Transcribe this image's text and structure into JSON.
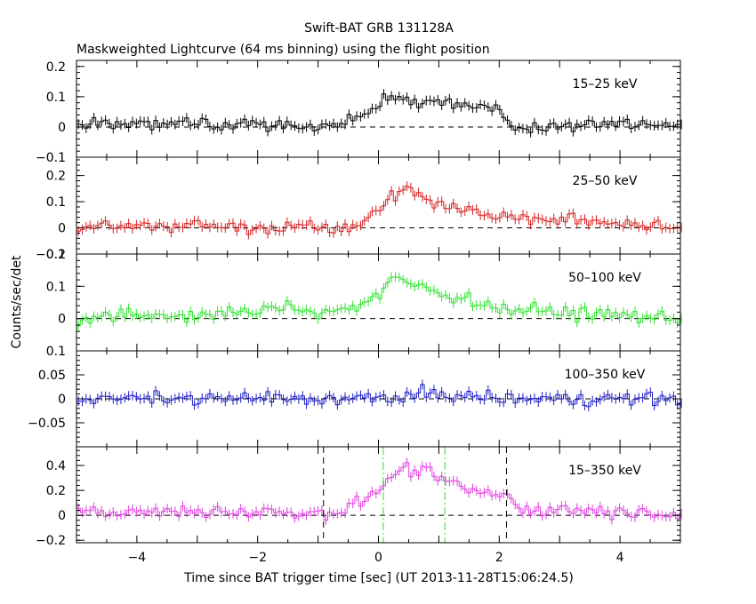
{
  "title": "Swift-BAT GRB 131128A",
  "subtitle": "Maskweighted Lightcurve (64 ms binning) using the flight position",
  "ylabel": "Counts/sec/det",
  "xlabel": "Time since BAT trigger time [sec] (UT 2013-11-28T15:06:24.5)",
  "colors": {
    "black": "#000000",
    "red": "#d62020",
    "green": "#2ee02e",
    "blue": "#1c1cc8",
    "magenta": "#e040e0"
  },
  "chart_data": [
    {
      "type": "line",
      "name": "15-25 keV",
      "label": "15–25 keV",
      "color": "#000000",
      "xlim": [
        -5,
        5
      ],
      "ylim": [
        -0.1,
        0.22
      ],
      "yticks": [
        -0.1,
        0,
        0.1,
        0.2
      ],
      "ytick_labels": [
        "−0.1",
        "0",
        "0.1",
        "0.2"
      ],
      "bin": 0.064,
      "x": [
        -5.0,
        -4.0,
        -3.0,
        -2.0,
        -1.0,
        -0.5,
        0.0,
        0.2,
        0.5,
        1.0,
        1.5,
        2.0,
        2.3,
        3.0,
        4.0,
        5.0
      ],
      "y": [
        0.01,
        0.01,
        0.01,
        0.01,
        0.0,
        0.02,
        0.07,
        0.1,
        0.08,
        0.09,
        0.07,
        0.06,
        -0.01,
        0.01,
        0.01,
        0.01
      ]
    },
    {
      "type": "line",
      "name": "25-50 keV",
      "label": "25–50 keV",
      "color": "#d62020",
      "xlim": [
        -5,
        5
      ],
      "ylim": [
        -0.1,
        0.27
      ],
      "yticks": [
        -0.1,
        0,
        0.1,
        0.2
      ],
      "ytick_labels": [
        "−0.1",
        "0",
        "0.1",
        "0.2"
      ],
      "bin": 0.064,
      "x": [
        -5.0,
        -4.0,
        -3.0,
        -2.0,
        -1.0,
        -0.5,
        0.0,
        0.3,
        0.5,
        1.0,
        1.5,
        2.0,
        3.0,
        4.0,
        5.0
      ],
      "y": [
        0.0,
        0.01,
        0.01,
        0.0,
        0.01,
        0.0,
        0.07,
        0.13,
        0.15,
        0.09,
        0.07,
        0.04,
        0.03,
        0.02,
        0.0
      ]
    },
    {
      "type": "line",
      "name": "50-100 keV",
      "label": "50–100 keV",
      "color": "#2ee02e",
      "xlim": [
        -5,
        5
      ],
      "ylim": [
        -0.1,
        0.2
      ],
      "yticks": [
        0,
        0.1,
        0.2
      ],
      "ytick_labels": [
        "0",
        "0.1",
        "0.2"
      ],
      "bin": 0.064,
      "x": [
        -5.0,
        -4.0,
        -3.0,
        -2.0,
        -1.5,
        -1.0,
        -0.5,
        0.0,
        0.3,
        0.5,
        1.0,
        1.5,
        2.0,
        3.0,
        4.0,
        5.0
      ],
      "y": [
        0.0,
        0.01,
        0.01,
        0.02,
        0.04,
        0.02,
        0.03,
        0.07,
        0.13,
        0.11,
        0.08,
        0.06,
        0.03,
        0.02,
        0.01,
        0.0
      ]
    },
    {
      "type": "line",
      "name": "100-350 keV",
      "label": "100–350 keV",
      "color": "#1c1cc8",
      "xlim": [
        -5,
        5
      ],
      "ylim": [
        -0.1,
        0.1
      ],
      "yticks": [
        -0.05,
        0,
        0.05,
        0.1
      ],
      "ytick_labels": [
        "−0.05",
        "0",
        "0.05",
        "0.1"
      ],
      "bin": 0.064,
      "x": [
        -5.0,
        -4.0,
        -3.0,
        -2.0,
        -1.0,
        0.0,
        1.0,
        2.0,
        3.0,
        4.0,
        5.0
      ],
      "y": [
        0.0,
        0.0,
        0.0,
        0.0,
        0.0,
        0.0,
        0.01,
        0.0,
        0.0,
        0.0,
        0.0
      ]
    },
    {
      "type": "line",
      "name": "15-350 keV",
      "label": "15–350 keV",
      "color": "#e040e0",
      "xlim": [
        -5,
        5
      ],
      "ylim": [
        -0.22,
        0.55
      ],
      "yticks": [
        -0.2,
        0,
        0.2,
        0.4
      ],
      "ytick_labels": [
        "−0.2",
        "0",
        "0.2",
        "0.4"
      ],
      "bin": 0.064,
      "x": [
        -5.0,
        -4.0,
        -3.0,
        -2.0,
        -1.0,
        -0.5,
        0.0,
        0.3,
        0.5,
        1.0,
        1.5,
        2.0,
        2.1,
        2.3,
        3.0,
        4.0,
        5.0
      ],
      "y": [
        0.03,
        0.02,
        0.03,
        0.03,
        0.02,
        0.05,
        0.2,
        0.35,
        0.38,
        0.3,
        0.2,
        0.15,
        0.2,
        0.05,
        0.05,
        0.03,
        0.02
      ],
      "vlines": [
        {
          "x": -0.91,
          "color": "#000000",
          "style": "dashed"
        },
        {
          "x": 2.12,
          "color": "#000000",
          "style": "dashed"
        },
        {
          "x": 0.08,
          "color": "#2ee02e",
          "style": "dashdot"
        },
        {
          "x": 1.1,
          "color": "#2ee02e",
          "style": "dashdot"
        }
      ]
    }
  ],
  "xaxis": {
    "ticks": [
      -4,
      -2,
      0,
      2,
      4
    ],
    "tick_labels": [
      "−4",
      "−2",
      "0",
      "2",
      "4"
    ]
  }
}
